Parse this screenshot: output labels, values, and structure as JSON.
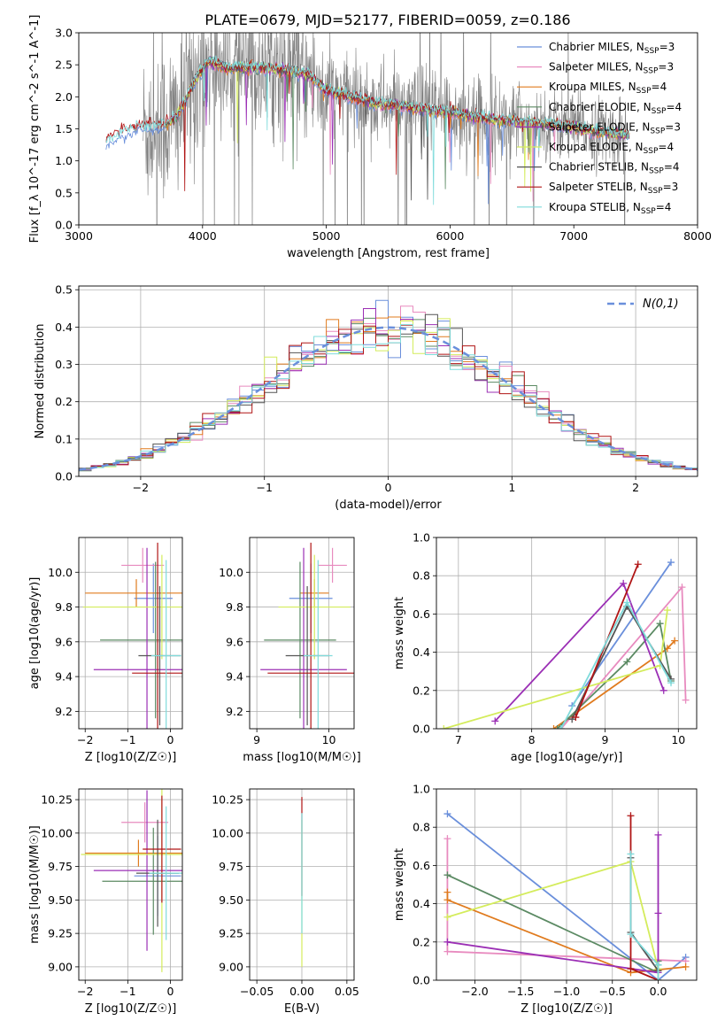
{
  "figure_title": "PLATE=0679, MJD=52177, FIBERID=0059, z=0.186",
  "models": [
    {
      "key": "chabrier_miles",
      "label": "Chabrier MILES, N",
      "sub": "SSP",
      "suffix": "=3",
      "color": "#6a8fdb"
    },
    {
      "key": "salpeter_miles",
      "label": "Salpeter MILES, N",
      "sub": "SSP",
      "suffix": "=3",
      "color": "#e88bbf"
    },
    {
      "key": "kroupa_miles",
      "label": "Kroupa MILES, N",
      "sub": "SSP",
      "suffix": "=4",
      "color": "#e07b1e"
    },
    {
      "key": "chabrier_elodie",
      "label": "Chabrier ELODIE, N",
      "sub": "SSP",
      "suffix": "=4",
      "color": "#5b8a63"
    },
    {
      "key": "salpeter_elodie",
      "label": "Salpeter ELODIE, N",
      "sub": "SSP",
      "suffix": "=3",
      "color": "#9b2fb5"
    },
    {
      "key": "kroupa_elodie",
      "label": "Kroupa ELODIE, N",
      "sub": "SSP",
      "suffix": "=4",
      "color": "#d4ec5c"
    },
    {
      "key": "chabrier_stelib",
      "label": "Chabrier STELIB, N",
      "sub": "SSP",
      "suffix": "=4",
      "color": "#555555"
    },
    {
      "key": "salpeter_stelib",
      "label": "Salpeter STELIB, N",
      "sub": "SSP",
      "suffix": "=3",
      "color": "#b01515"
    },
    {
      "key": "kroupa_stelib",
      "label": "Kroupa STELIB, N",
      "sub": "SSP",
      "suffix": "=4",
      "color": "#7fdbdb"
    }
  ],
  "chart_data": [
    {
      "id": "spectrum",
      "type": "line",
      "xlabel": "wavelength [Angstrom, rest frame]",
      "ylabel": "Flux [f_λ 10^-17 erg cm^-2 s^-1 A^-1]",
      "xlim": [
        3000,
        8000
      ],
      "ylim": [
        0,
        3.0
      ],
      "xticks": [
        3000,
        4000,
        5000,
        6000,
        7000,
        8000
      ],
      "yticks": [
        0.0,
        0.5,
        1.0,
        1.5,
        2.0,
        2.5,
        3.0
      ],
      "grid": false,
      "legend": "top-right",
      "data_color": "#808080",
      "model_continuum": {
        "x": [
          3220,
          3350,
          3500,
          3650,
          3800,
          3950,
          4050,
          4200,
          4350,
          4500,
          4700,
          4850,
          5000,
          5200,
          5400,
          5600,
          5800,
          6000,
          6300,
          6600,
          6900,
          7200,
          7450
        ],
        "y": [
          1.28,
          1.42,
          1.52,
          1.5,
          1.7,
          2.3,
          2.55,
          2.45,
          2.45,
          2.45,
          2.4,
          2.35,
          2.1,
          2.0,
          1.9,
          1.85,
          1.8,
          1.75,
          1.65,
          1.6,
          1.55,
          1.45,
          1.4
        ]
      }
    },
    {
      "id": "residuals",
      "type": "histogram",
      "xlabel": "(data-model)/error",
      "ylabel": "Normed distribution",
      "xlim": [
        -2.5,
        2.5
      ],
      "ylim": [
        0,
        0.51
      ],
      "xticks": [
        -2,
        -1,
        0,
        1,
        2
      ],
      "yticks": [
        0.0,
        0.1,
        0.2,
        0.3,
        0.4,
        0.5
      ],
      "grid": true,
      "legend": "top-right",
      "reference_curve": {
        "label": "N(0,1)",
        "color": "#6a8fdb",
        "dash": true
      },
      "bin_width": 0.1
    },
    {
      "id": "age_vs_Z",
      "type": "errorbar",
      "xlabel": "Z [log10(Z/Z☉)]",
      "ylabel": "age [log10(age/yr)]",
      "xlim": [
        -2.15,
        0.28
      ],
      "ylim": [
        9.1,
        10.2
      ],
      "xticks": [
        -2,
        -1,
        0
      ],
      "yticks": [
        9.2,
        9.4,
        9.6,
        9.8,
        10.0
      ],
      "grid": true,
      "points": [
        {
          "m": "chabrier_miles",
          "x": -0.4,
          "xerr": 0.45,
          "y": 9.85,
          "yerr": 0.2
        },
        {
          "m": "salpeter_miles",
          "x": -0.65,
          "xerr": 0.5,
          "y": 10.04,
          "yerr": 0.1
        },
        {
          "m": "kroupa_miles",
          "x": -0.8,
          "xerr": 1.2,
          "y": 9.88,
          "yerr": 0.08
        },
        {
          "m": "chabrier_elodie",
          "x": -0.35,
          "xerr": 1.3,
          "y": 9.61,
          "yerr": 0.45
        },
        {
          "m": "salpeter_elodie",
          "x": -0.55,
          "xerr": 1.25,
          "y": 9.44,
          "yerr": 0.7
        },
        {
          "m": "kroupa_elodie",
          "x": -0.2,
          "xerr": 1.85,
          "y": 9.8,
          "yerr": 0.3
        },
        {
          "m": "chabrier_stelib",
          "x": -0.25,
          "xerr": 0.5,
          "y": 9.52,
          "yerr": 0.4
        },
        {
          "m": "salpeter_stelib",
          "x": -0.3,
          "xerr": 0.6,
          "y": 9.42,
          "yerr": 0.75
        },
        {
          "m": "kroupa_stelib",
          "x": -0.1,
          "xerr": 0.35,
          "y": 9.52,
          "yerr": 0.55
        }
      ]
    },
    {
      "id": "age_vs_mass",
      "type": "errorbar",
      "xlabel": "mass [log10(M/M☉)]",
      "ylabel": "",
      "xlim": [
        8.9,
        10.35
      ],
      "ylim": [
        9.1,
        10.2
      ],
      "xticks": [
        9,
        10
      ],
      "yticks": [
        9.2,
        9.4,
        9.6,
        9.8,
        10.0
      ],
      "grid": true,
      "points": [
        {
          "m": "chabrier_miles",
          "x": 9.75,
          "xerr": 0.3,
          "y": 9.85,
          "yerr": 0.2
        },
        {
          "m": "salpeter_miles",
          "x": 10.05,
          "xerr": 0.2,
          "y": 10.04,
          "yerr": 0.1
        },
        {
          "m": "kroupa_miles",
          "x": 9.8,
          "xerr": 0.2,
          "y": 9.88,
          "yerr": 0.08
        },
        {
          "m": "chabrier_elodie",
          "x": 9.6,
          "xerr": 0.5,
          "y": 9.61,
          "yerr": 0.45
        },
        {
          "m": "salpeter_elodie",
          "x": 9.65,
          "xerr": 0.6,
          "y": 9.44,
          "yerr": 0.7
        },
        {
          "m": "kroupa_elodie",
          "x": 9.8,
          "xerr": 0.5,
          "y": 9.8,
          "yerr": 0.3
        },
        {
          "m": "chabrier_stelib",
          "x": 9.7,
          "xerr": 0.3,
          "y": 9.52,
          "yerr": 0.4
        },
        {
          "m": "salpeter_stelib",
          "x": 9.75,
          "xerr": 0.6,
          "y": 9.42,
          "yerr": 0.75
        },
        {
          "m": "kroupa_stelib",
          "x": 9.85,
          "xerr": 0.2,
          "y": 9.52,
          "yerr": 0.55
        }
      ]
    },
    {
      "id": "weight_vs_age",
      "type": "line",
      "xlabel": "age [log10(age/yr)]",
      "ylabel": "mass weight",
      "xlim": [
        6.7,
        10.25
      ],
      "ylim": [
        0,
        1.0
      ],
      "xticks": [
        7,
        8,
        9,
        10
      ],
      "yticks": [
        0.0,
        0.2,
        0.4,
        0.6,
        0.8,
        1.0
      ],
      "grid": true,
      "series": [
        {
          "m": "chabrier_miles",
          "x": [
            8.55,
            9.9
          ],
          "y": [
            0.12,
            0.87
          ]
        },
        {
          "m": "salpeter_miles",
          "x": [
            8.4,
            10.05,
            10.1
          ],
          "y": [
            0.0,
            0.74,
            0.15
          ]
        },
        {
          "m": "kroupa_miles",
          "x": [
            8.3,
            9.85,
            9.95
          ],
          "y": [
            0.0,
            0.42,
            0.46
          ]
        },
        {
          "m": "chabrier_elodie",
          "x": [
            8.35,
            9.3,
            9.75,
            9.9
          ],
          "y": [
            0.0,
            0.35,
            0.55,
            0.25
          ]
        },
        {
          "m": "salpeter_elodie",
          "x": [
            7.5,
            9.25,
            9.8
          ],
          "y": [
            0.04,
            0.76,
            0.2
          ]
        },
        {
          "m": "kroupa_elodie",
          "x": [
            6.8,
            9.75,
            9.85
          ],
          "y": [
            0.0,
            0.33,
            0.62
          ]
        },
        {
          "m": "chabrier_stelib",
          "x": [
            8.55,
            9.3,
            9.9
          ],
          "y": [
            0.05,
            0.64,
            0.26
          ]
        },
        {
          "m": "salpeter_stelib",
          "x": [
            8.6,
            9.45
          ],
          "y": [
            0.06,
            0.86
          ]
        },
        {
          "m": "kroupa_stelib",
          "x": [
            8.4,
            9.3,
            9.9
          ],
          "y": [
            0.0,
            0.66,
            0.24
          ]
        }
      ]
    },
    {
      "id": "mass_vs_Z",
      "type": "errorbar",
      "xlabel": "Z [log10(Z/Z☉)]",
      "ylabel": "mass [log10(M/M☉)]",
      "xlim": [
        -2.15,
        0.28
      ],
      "ylim": [
        8.9,
        10.33
      ],
      "xticks": [
        -2,
        -1,
        0
      ],
      "yticks": [
        9.0,
        9.25,
        9.5,
        9.75,
        10.0,
        10.25
      ],
      "grid": true,
      "points": [
        {
          "m": "chabrier_miles",
          "x": -0.3,
          "xerr": 0.55,
          "y": 9.68,
          "yerr": 0.3
        },
        {
          "m": "salpeter_miles",
          "x": -0.6,
          "xerr": 0.55,
          "y": 10.08,
          "yerr": 0.15
        },
        {
          "m": "kroupa_miles",
          "x": -0.75,
          "xerr": 1.25,
          "y": 9.85,
          "yerr": 0.1
        },
        {
          "m": "chabrier_elodie",
          "x": -0.4,
          "xerr": 1.2,
          "y": 9.64,
          "yerr": 0.4
        },
        {
          "m": "salpeter_elodie",
          "x": -0.55,
          "xerr": 1.25,
          "y": 9.72,
          "yerr": 0.6
        },
        {
          "m": "kroupa_elodie",
          "x": -0.2,
          "xerr": 1.9,
          "y": 9.84,
          "yerr": 0.88
        },
        {
          "m": "chabrier_stelib",
          "x": -0.3,
          "xerr": 0.5,
          "y": 9.7,
          "yerr": 0.4
        },
        {
          "m": "salpeter_stelib",
          "x": -0.2,
          "xerr": 0.45,
          "y": 9.88,
          "yerr": 0.4
        },
        {
          "m": "kroupa_stelib",
          "x": -0.1,
          "xerr": 0.4,
          "y": 9.7,
          "yerr": 0.5
        }
      ]
    },
    {
      "id": "mass_vs_ebv",
      "type": "errorbar",
      "xlabel": "E(B-V)",
      "ylabel": "",
      "xlim": [
        -0.058,
        0.058
      ],
      "ylim": [
        8.9,
        10.33
      ],
      "xticks": [
        -0.05,
        0.0,
        0.05
      ],
      "yticks": [
        9.0,
        9.25,
        9.5,
        9.75,
        10.0,
        10.25
      ],
      "grid": true,
      "points": [
        {
          "m": "kroupa_elodie",
          "x": 0.0,
          "xerr": 0,
          "y": 9.55,
          "yerr": 0.55
        },
        {
          "m": "salpeter_stelib",
          "x": 0.0,
          "xerr": 0,
          "y": 9.9,
          "yerr": 0.37
        },
        {
          "m": "kroupa_stelib",
          "x": 0.0,
          "xerr": 0,
          "y": 9.7,
          "yerr": 0.45
        }
      ]
    },
    {
      "id": "weight_vs_Z",
      "type": "line",
      "xlabel": "Z [log10(Z/Z☉)]",
      "ylabel": "mass weight",
      "xlim": [
        -2.42,
        0.42
      ],
      "ylim": [
        0,
        1.0
      ],
      "xticks": [
        -2.0,
        -1.5,
        -1.0,
        -0.5,
        0.0
      ],
      "yticks": [
        0.0,
        0.2,
        0.4,
        0.6,
        0.8,
        1.0
      ],
      "grid": true,
      "series": [
        {
          "m": "chabrier_miles",
          "x": [
            -2.3,
            0.0,
            0.3
          ],
          "y": [
            0.87,
            0.0,
            0.12
          ]
        },
        {
          "m": "salpeter_miles",
          "x": [
            -2.3,
            -2.3,
            0.3
          ],
          "y": [
            0.74,
            0.15,
            0.1
          ]
        },
        {
          "m": "kroupa_miles",
          "x": [
            -2.3,
            -2.3,
            -0.3,
            0.3
          ],
          "y": [
            0.46,
            0.42,
            0.04,
            0.07
          ]
        },
        {
          "m": "chabrier_elodie",
          "x": [
            -2.3,
            0.0,
            0.0
          ],
          "y": [
            0.55,
            0.04,
            0.1
          ]
        },
        {
          "m": "salpeter_elodie",
          "x": [
            -2.3,
            0.0,
            0.0,
            0.0
          ],
          "y": [
            0.2,
            0.04,
            0.35,
            0.76
          ]
        },
        {
          "m": "kroupa_elodie",
          "x": [
            -2.3,
            -0.3,
            0.0,
            0.0
          ],
          "y": [
            0.33,
            0.62,
            0.06,
            0.0
          ]
        },
        {
          "m": "chabrier_stelib",
          "x": [
            -0.3,
            -0.3,
            0.0,
            0.0
          ],
          "y": [
            0.64,
            0.25,
            0.05,
            0.08
          ]
        },
        {
          "m": "salpeter_stelib",
          "x": [
            -0.3,
            -0.3,
            0.0
          ],
          "y": [
            0.86,
            0.06,
            0.0
          ]
        },
        {
          "m": "kroupa_stelib",
          "x": [
            -0.3,
            -0.3,
            0.0,
            0.0
          ],
          "y": [
            0.66,
            0.24,
            0.08,
            0.0
          ]
        }
      ]
    }
  ]
}
